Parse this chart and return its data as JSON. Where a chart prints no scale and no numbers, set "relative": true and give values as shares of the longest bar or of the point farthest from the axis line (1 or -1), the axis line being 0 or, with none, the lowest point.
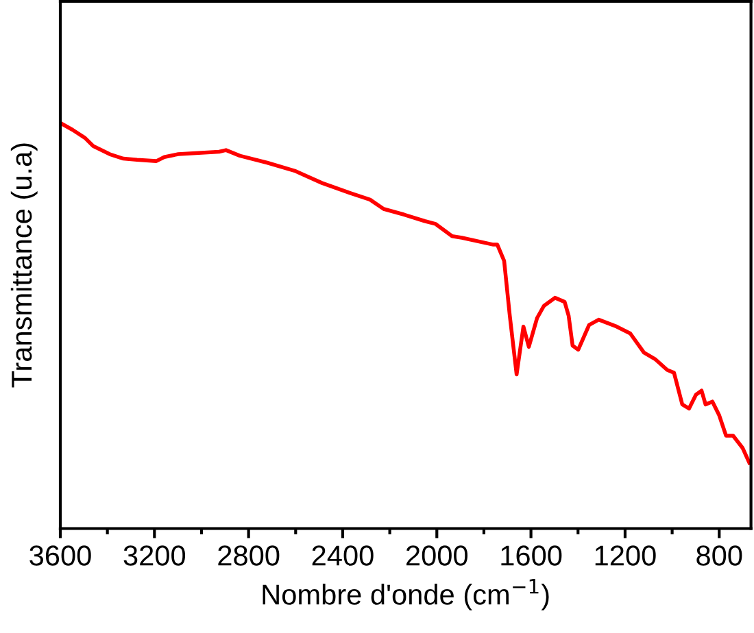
{
  "chart_data": {
    "type": "line",
    "xlabel": "Nombre d'onde (cm$^{−1}$)",
    "ylabel": "Transmittance (u.a)",
    "relative": true,
    "xlim": [
      3600,
      665
    ],
    "xticks": [
      3600,
      {
        "value": 3400,
        "label": null
      },
      3200,
      {
        "value": 3000,
        "label": null
      },
      2800,
      {
        "value": 2600,
        "label": null
      },
      2400,
      {
        "value": 2200,
        "label": null
      },
      2000,
      {
        "value": 1800,
        "label": null
      },
      1600,
      {
        "value": 1400,
        "label": null
      },
      1200,
      {
        "value": 1000,
        "label": null
      },
      800
    ],
    "marker": "none",
    "line_style": "solid",
    "series": [
      {
        "color": "#ff0000",
        "x": [
          3600,
          3548,
          3495,
          3460,
          3390,
          3332,
          3274,
          3192,
          3158,
          3099,
          3012,
          2925,
          2896,
          2837,
          2721,
          2604,
          2488,
          2372,
          2284,
          2226,
          2139,
          2051,
          2005,
          1935,
          1894,
          1760,
          1743,
          1714,
          1690,
          1661,
          1632,
          1609,
          1574,
          1545,
          1498,
          1457,
          1440,
          1423,
          1399,
          1353,
          1312,
          1236,
          1178,
          1120,
          1073,
          1021,
          992,
          957,
          928,
          899,
          875,
          858,
          829,
          800,
          771,
          741,
          701,
          672
        ],
        "values": [
          1.0,
          0.983,
          0.963,
          0.943,
          0.923,
          0.912,
          0.909,
          0.906,
          0.916,
          0.923,
          0.926,
          0.929,
          0.933,
          0.919,
          0.902,
          0.882,
          0.852,
          0.828,
          0.811,
          0.788,
          0.774,
          0.758,
          0.751,
          0.721,
          0.717,
          0.7,
          0.7,
          0.66,
          0.525,
          0.38,
          0.498,
          0.448,
          0.519,
          0.549,
          0.569,
          0.559,
          0.525,
          0.451,
          0.441,
          0.502,
          0.515,
          0.498,
          0.481,
          0.434,
          0.418,
          0.391,
          0.384,
          0.306,
          0.296,
          0.33,
          0.34,
          0.306,
          0.313,
          0.279,
          0.229,
          0.229,
          0.199,
          0.162
        ]
      }
    ]
  }
}
